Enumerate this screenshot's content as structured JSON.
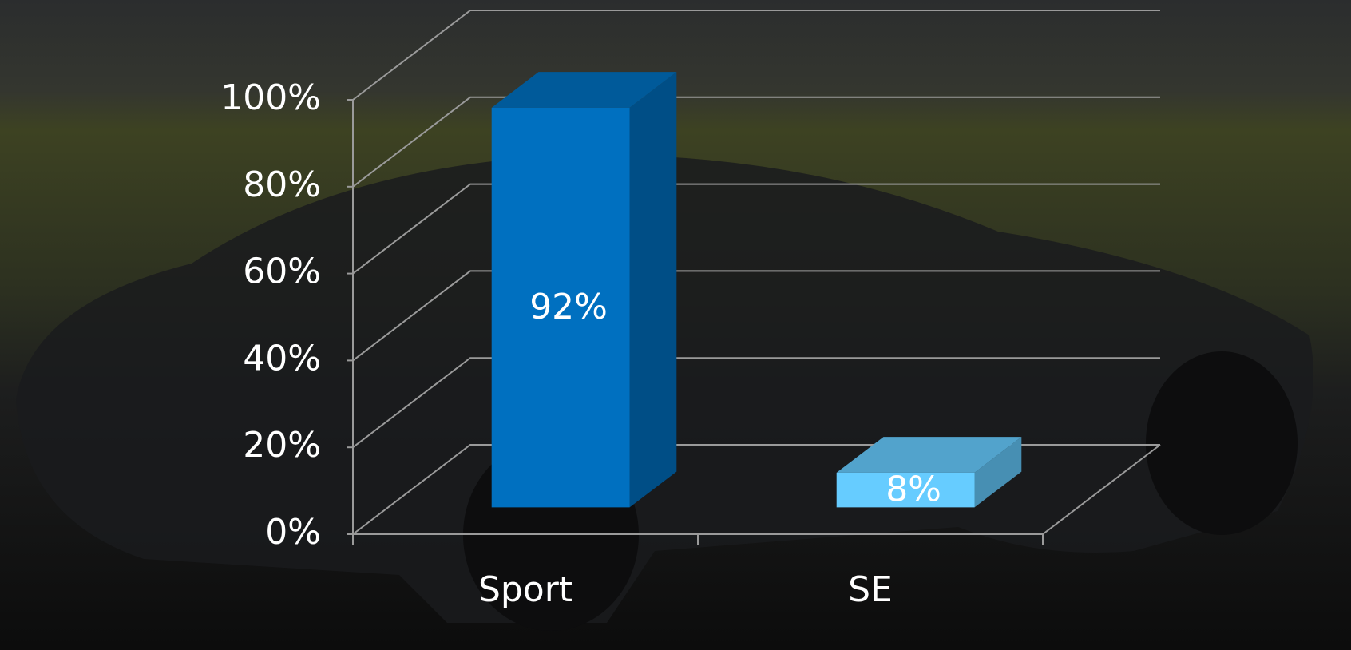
{
  "chart_data": {
    "type": "bar",
    "categories": [
      "Sport",
      "SE"
    ],
    "values": [
      92,
      8
    ],
    "value_labels": [
      "92%",
      "8%"
    ],
    "colors": [
      "#0070c0",
      "#66ccff"
    ],
    "ylim": [
      0,
      100
    ],
    "yticks": [
      {
        "value": 0,
        "label": "0%"
      },
      {
        "value": 20,
        "label": "20%"
      },
      {
        "value": 40,
        "label": "40%"
      },
      {
        "value": 60,
        "label": "60%"
      },
      {
        "value": 80,
        "label": "80%"
      },
      {
        "value": 100,
        "label": "100%"
      }
    ],
    "grid": true
  }
}
